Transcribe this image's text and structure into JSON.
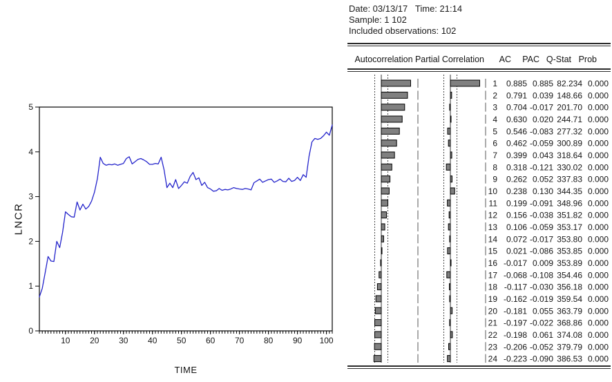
{
  "info": {
    "date_time": "Date: 03/13/17   Time: 21:14",
    "sample": "Sample: 1 102",
    "observations": "Included observations: 102"
  },
  "chart_data": [
    {
      "type": "line",
      "title": "",
      "xlabel": "TIME",
      "ylabel": "LNCR",
      "xlim": [
        1,
        102
      ],
      "ylim": [
        0,
        5
      ],
      "x_ticks": [
        10,
        20,
        30,
        40,
        50,
        60,
        70,
        80,
        90,
        100
      ],
      "y_ticks": [
        0,
        1,
        2,
        3,
        4,
        5
      ],
      "x_minor_tick_step": 1,
      "grid": false,
      "legend": "none",
      "line_color": "#2323cb",
      "axis_color": "#000000",
      "series": [
        {
          "name": "LNCR",
          "x_start": 1,
          "values": [
            0.76,
            0.95,
            1.3,
            1.66,
            1.56,
            1.55,
            2.0,
            1.86,
            2.2,
            2.66,
            2.6,
            2.55,
            2.54,
            2.88,
            2.7,
            2.83,
            2.72,
            2.78,
            2.9,
            3.1,
            3.4,
            3.88,
            3.74,
            3.7,
            3.72,
            3.71,
            3.73,
            3.7,
            3.72,
            3.74,
            3.85,
            3.89,
            3.73,
            3.78,
            3.83,
            3.85,
            3.82,
            3.78,
            3.72,
            3.72,
            3.74,
            3.73,
            3.88,
            3.6,
            3.2,
            3.3,
            3.2,
            3.38,
            3.18,
            3.25,
            3.33,
            3.3,
            3.45,
            3.54,
            3.38,
            3.42,
            3.25,
            3.32,
            3.2,
            3.17,
            3.12,
            3.13,
            3.18,
            3.14,
            3.16,
            3.15,
            3.17,
            3.2,
            3.18,
            3.17,
            3.16,
            3.18,
            3.17,
            3.15,
            3.31,
            3.35,
            3.39,
            3.32,
            3.35,
            3.38,
            3.39,
            3.32,
            3.35,
            3.39,
            3.34,
            3.33,
            3.41,
            3.34,
            3.36,
            3.43,
            3.36,
            3.49,
            3.43,
            3.9,
            4.22,
            4.3,
            4.28,
            4.3,
            4.36,
            4.44,
            4.37,
            4.6
          ]
        }
      ]
    },
    {
      "type": "table",
      "columns": [
        "Autocorrelation",
        "Partial Correlation",
        "AC",
        "PAC",
        "Q-Stat",
        "Prob"
      ],
      "confidence_band": 0.198,
      "bar_color": "#808080",
      "bar_border_color": "#000000",
      "rows": [
        {
          "lag": 1,
          "ac": 0.885,
          "pac": 0.885,
          "qstat": "82.234",
          "prob": "0.000"
        },
        {
          "lag": 2,
          "ac": 0.791,
          "pac": 0.039,
          "qstat": "148.66",
          "prob": "0.000"
        },
        {
          "lag": 3,
          "ac": 0.704,
          "pac": -0.017,
          "qstat": "201.70",
          "prob": "0.000"
        },
        {
          "lag": 4,
          "ac": 0.63,
          "pac": 0.02,
          "qstat": "244.71",
          "prob": "0.000"
        },
        {
          "lag": 5,
          "ac": 0.546,
          "pac": -0.083,
          "qstat": "277.32",
          "prob": "0.000"
        },
        {
          "lag": 6,
          "ac": 0.462,
          "pac": -0.059,
          "qstat": "300.89",
          "prob": "0.000"
        },
        {
          "lag": 7,
          "ac": 0.399,
          "pac": 0.043,
          "qstat": "318.64",
          "prob": "0.000"
        },
        {
          "lag": 8,
          "ac": 0.318,
          "pac": -0.121,
          "qstat": "330.02",
          "prob": "0.000"
        },
        {
          "lag": 9,
          "ac": 0.262,
          "pac": 0.052,
          "qstat": "337.83",
          "prob": "0.000"
        },
        {
          "lag": 10,
          "ac": 0.238,
          "pac": 0.13,
          "qstat": "344.35",
          "prob": "0.000"
        },
        {
          "lag": 11,
          "ac": 0.199,
          "pac": -0.091,
          "qstat": "348.96",
          "prob": "0.000"
        },
        {
          "lag": 12,
          "ac": 0.156,
          "pac": -0.038,
          "qstat": "351.82",
          "prob": "0.000"
        },
        {
          "lag": 13,
          "ac": 0.106,
          "pac": -0.059,
          "qstat": "353.17",
          "prob": "0.000"
        },
        {
          "lag": 14,
          "ac": 0.072,
          "pac": -0.017,
          "qstat": "353.80",
          "prob": "0.000"
        },
        {
          "lag": 15,
          "ac": 0.021,
          "pac": -0.086,
          "qstat": "353.85",
          "prob": "0.000"
        },
        {
          "lag": 16,
          "ac": -0.017,
          "pac": 0.009,
          "qstat": "353.89",
          "prob": "0.000"
        },
        {
          "lag": 17,
          "ac": -0.068,
          "pac": -0.108,
          "qstat": "354.46",
          "prob": "0.000"
        },
        {
          "lag": 18,
          "ac": -0.117,
          "pac": -0.03,
          "qstat": "356.18",
          "prob": "0.000"
        },
        {
          "lag": 19,
          "ac": -0.162,
          "pac": -0.019,
          "qstat": "359.54",
          "prob": "0.000"
        },
        {
          "lag": 20,
          "ac": -0.181,
          "pac": 0.055,
          "qstat": "363.79",
          "prob": "0.000"
        },
        {
          "lag": 21,
          "ac": -0.197,
          "pac": -0.022,
          "qstat": "368.86",
          "prob": "0.000"
        },
        {
          "lag": 22,
          "ac": -0.198,
          "pac": 0.061,
          "qstat": "374.08",
          "prob": "0.000"
        },
        {
          "lag": 23,
          "ac": -0.206,
          "pac": -0.052,
          "qstat": "379.79",
          "prob": "0.000"
        },
        {
          "lag": 24,
          "ac": -0.223,
          "pac": -0.09,
          "qstat": "386.53",
          "prob": "0.000"
        }
      ]
    }
  ]
}
